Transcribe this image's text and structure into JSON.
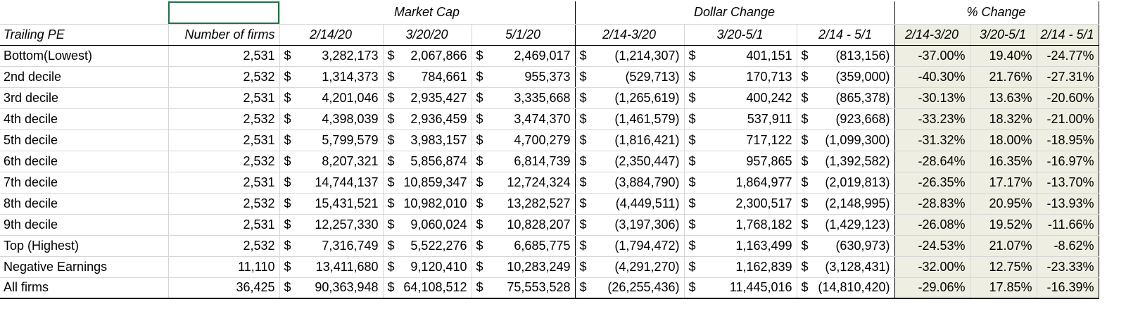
{
  "groups": {
    "market_cap": "Market Cap",
    "dollar_change": "Dollar Change",
    "pct_change": "% Change"
  },
  "columns": {
    "trailing_pe": "Trailing PE",
    "num_firms": "Number of firms",
    "mc_0214": "2/14/20",
    "mc_0320": "3/20/20",
    "mc_0501": "5/1/20",
    "dc_1": "2/14-3/20",
    "dc_2": "3/20-5/1",
    "dc_3": "2/14 - 5/1",
    "pc_1": "2/14-3/20",
    "pc_2": "3/20-5/1",
    "pc_3": "2/14 - 5/1"
  },
  "currency_symbol": "$",
  "rows": [
    {
      "label": "Bottom(Lowest)",
      "firms": "2,531",
      "mc1": "3,282,173",
      "mc2": "2,067,866",
      "mc3": "2,469,017",
      "dc1": "(1,214,307)",
      "dc2": "401,151",
      "dc3": "(813,156)",
      "pc1": "-37.00%",
      "pc2": "19.40%",
      "pc3": "-24.77%"
    },
    {
      "label": "2nd decile",
      "firms": "2,532",
      "mc1": "1,314,373",
      "mc2": "784,661",
      "mc3": "955,373",
      "dc1": "(529,713)",
      "dc2": "170,713",
      "dc3": "(359,000)",
      "pc1": "-40.30%",
      "pc2": "21.76%",
      "pc3": "-27.31%"
    },
    {
      "label": "3rd decile",
      "firms": "2,531",
      "mc1": "4,201,046",
      "mc2": "2,935,427",
      "mc3": "3,335,668",
      "dc1": "(1,265,619)",
      "dc2": "400,242",
      "dc3": "(865,378)",
      "pc1": "-30.13%",
      "pc2": "13.63%",
      "pc3": "-20.60%"
    },
    {
      "label": "4th decile",
      "firms": "2,532",
      "mc1": "4,398,039",
      "mc2": "2,936,459",
      "mc3": "3,474,370",
      "dc1": "(1,461,579)",
      "dc2": "537,911",
      "dc3": "(923,668)",
      "pc1": "-33.23%",
      "pc2": "18.32%",
      "pc3": "-21.00%"
    },
    {
      "label": "5th decile",
      "firms": "2,531",
      "mc1": "5,799,579",
      "mc2": "3,983,157",
      "mc3": "4,700,279",
      "dc1": "(1,816,421)",
      "dc2": "717,122",
      "dc3": "(1,099,300)",
      "pc1": "-31.32%",
      "pc2": "18.00%",
      "pc3": "-18.95%"
    },
    {
      "label": "6th decile",
      "firms": "2,532",
      "mc1": "8,207,321",
      "mc2": "5,856,874",
      "mc3": "6,814,739",
      "dc1": "(2,350,447)",
      "dc2": "957,865",
      "dc3": "(1,392,582)",
      "pc1": "-28.64%",
      "pc2": "16.35%",
      "pc3": "-16.97%"
    },
    {
      "label": "7th decile",
      "firms": "2,531",
      "mc1": "14,744,137",
      "mc2": "10,859,347",
      "mc3": "12,724,324",
      "dc1": "(3,884,790)",
      "dc2": "1,864,977",
      "dc3": "(2,019,813)",
      "pc1": "-26.35%",
      "pc2": "17.17%",
      "pc3": "-13.70%"
    },
    {
      "label": "8th decile",
      "firms": "2,532",
      "mc1": "15,431,521",
      "mc2": "10,982,010",
      "mc3": "13,282,527",
      "dc1": "(4,449,511)",
      "dc2": "2,300,517",
      "dc3": "(2,148,995)",
      "pc1": "-28.83%",
      "pc2": "20.95%",
      "pc3": "-13.93%"
    },
    {
      "label": "9th decile",
      "firms": "2,531",
      "mc1": "12,257,330",
      "mc2": "9,060,024",
      "mc3": "10,828,207",
      "dc1": "(3,197,306)",
      "dc2": "1,768,182",
      "dc3": "(1,429,123)",
      "pc1": "-26.08%",
      "pc2": "19.52%",
      "pc3": "-11.66%"
    },
    {
      "label": "Top (Highest)",
      "firms": "2,532",
      "mc1": "7,316,749",
      "mc2": "5,522,276",
      "mc3": "6,685,775",
      "dc1": "(1,794,472)",
      "dc2": "1,163,499",
      "dc3": "(630,973)",
      "pc1": "-24.53%",
      "pc2": "21.07%",
      "pc3": "-8.62%"
    },
    {
      "label": "Negative Earnings",
      "firms": "11,110",
      "mc1": "13,411,680",
      "mc2": "9,120,410",
      "mc3": "10,283,249",
      "dc1": "(4,291,270)",
      "dc2": "1,162,839",
      "dc3": "(3,128,431)",
      "pc1": "-32.00%",
      "pc2": "12.75%",
      "pc3": "-23.33%"
    },
    {
      "label": "All firms",
      "firms": "36,425",
      "mc1": "90,363,948",
      "mc2": "64,108,512",
      "mc3": "75,553,528",
      "dc1": "(26,255,436)",
      "dc2": "11,445,016",
      "dc3": "(14,810,420)",
      "pc1": "-29.06%",
      "pc2": "17.85%",
      "pc3": "-16.39%"
    }
  ],
  "styles": {
    "pct_fill": "#eeeee2",
    "selection_border": "#1f7244",
    "gridline": "#d6d6d6"
  }
}
